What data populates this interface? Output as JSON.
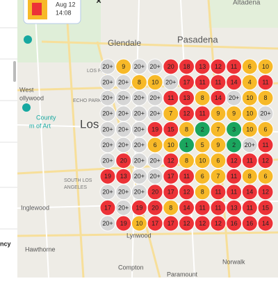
{
  "popup": {
    "date": "Aug 12",
    "time": "14:08"
  },
  "sidebar": {
    "text": "ncy"
  },
  "map_labels": [
    "Altadena",
    "Pasadena",
    "Glendale",
    "LOS FELIZ",
    "West",
    "ollywood",
    "ECHO PARK",
    "County",
    "m of Art",
    "Los",
    "SOUTH LOS",
    "ANGELES",
    "Inglewood",
    "Hawthorne",
    "Lynwood",
    "Compton",
    "Paramount",
    "Norwalk"
  ],
  "grid": {
    "rows": [
      [
        "20+",
        "9",
        "20+",
        "20+",
        "20",
        "18",
        "13",
        "12",
        "11",
        "6",
        "10"
      ],
      [
        "20+",
        "20+",
        "8",
        "10",
        "20+",
        "17",
        "11",
        "11",
        "14",
        "4",
        "11"
      ],
      [
        "20+",
        "20+",
        "20+",
        "20+",
        "11",
        "13",
        "8",
        "14",
        "20+",
        "10",
        "8"
      ],
      [
        "20+",
        "20+",
        "20+",
        "20+",
        "7",
        "12",
        "11",
        "9",
        "9",
        "10",
        "20+"
      ],
      [
        "20+",
        "20+",
        "20+",
        "19",
        "15",
        "8",
        "2",
        "7",
        "3",
        "10",
        "6"
      ],
      [
        "20+",
        "20+",
        "20+",
        "6",
        "10",
        "1",
        "5",
        "9",
        "2",
        "20+",
        "11"
      ],
      [
        "20+",
        "20",
        "20+",
        "20+",
        "12",
        "8",
        "10",
        "6",
        "12",
        "11",
        "12"
      ],
      [
        "19",
        "13",
        "20+",
        "20+",
        "17",
        "11",
        "6",
        "7",
        "11",
        "8",
        "6"
      ],
      [
        "20+",
        "20+",
        "20+",
        "20",
        "17",
        "12",
        "8",
        "11",
        "11",
        "14",
        "12"
      ],
      [
        "17",
        "20+",
        "19",
        "20",
        "8",
        "14",
        "11",
        "11",
        "13",
        "11",
        "15"
      ],
      [
        "20+",
        "19",
        "10",
        "17",
        "17",
        "12",
        "12",
        "12",
        "16",
        "16",
        "14"
      ]
    ],
    "colors": [
      [
        "#d6d6d6",
        "#f7b928",
        "#d6d6d6",
        "#d6d6d6",
        "#ec3237",
        "#ec3237",
        "#ec3237",
        "#ec3237",
        "#ec3237",
        "#f7b928",
        "#f7b928"
      ],
      [
        "#d6d6d6",
        "#d6d6d6",
        "#f7b928",
        "#f7b928",
        "#d6d6d6",
        "#ec3237",
        "#ec3237",
        "#ec3237",
        "#ec3237",
        "#f7b928",
        "#ec3237"
      ],
      [
        "#d6d6d6",
        "#d6d6d6",
        "#d6d6d6",
        "#d6d6d6",
        "#ec3237",
        "#ec3237",
        "#f7b928",
        "#ec3237",
        "#d6d6d6",
        "#f7b928",
        "#f7b928"
      ],
      [
        "#d6d6d6",
        "#d6d6d6",
        "#d6d6d6",
        "#d6d6d6",
        "#f7b928",
        "#ec3237",
        "#ec3237",
        "#f7b928",
        "#f7b928",
        "#f7b928",
        "#d6d6d6"
      ],
      [
        "#d6d6d6",
        "#d6d6d6",
        "#d6d6d6",
        "#ec3237",
        "#ec3237",
        "#f7b928",
        "#1ba55e",
        "#f7b928",
        "#1ba55e",
        "#f7b928",
        "#f7b928"
      ],
      [
        "#d6d6d6",
        "#d6d6d6",
        "#d6d6d6",
        "#f7b928",
        "#f7b928",
        "#1ba55e",
        "#f7b928",
        "#f7b928",
        "#1ba55e",
        "#d6d6d6",
        "#ec3237"
      ],
      [
        "#d6d6d6",
        "#ec3237",
        "#d6d6d6",
        "#d6d6d6",
        "#ec3237",
        "#f7b928",
        "#f7b928",
        "#f7b928",
        "#ec3237",
        "#ec3237",
        "#ec3237"
      ],
      [
        "#ec3237",
        "#ec3237",
        "#d6d6d6",
        "#d6d6d6",
        "#ec3237",
        "#ec3237",
        "#f7b928",
        "#f7b928",
        "#ec3237",
        "#f7b928",
        "#f7b928"
      ],
      [
        "#d6d6d6",
        "#d6d6d6",
        "#d6d6d6",
        "#ec3237",
        "#ec3237",
        "#ec3237",
        "#f7b928",
        "#ec3237",
        "#ec3237",
        "#ec3237",
        "#ec3237"
      ],
      [
        "#ec3237",
        "#d6d6d6",
        "#ec3237",
        "#ec3237",
        "#f7b928",
        "#ec3237",
        "#ec3237",
        "#ec3237",
        "#ec3237",
        "#ec3237",
        "#ec3237"
      ],
      [
        "#d6d6d6",
        "#ec3237",
        "#f7b928",
        "#ec3237",
        "#ec3237",
        "#ec3237",
        "#ec3237",
        "#ec3237",
        "#ec3237",
        "#ec3237",
        "#ec3237"
      ]
    ]
  }
}
